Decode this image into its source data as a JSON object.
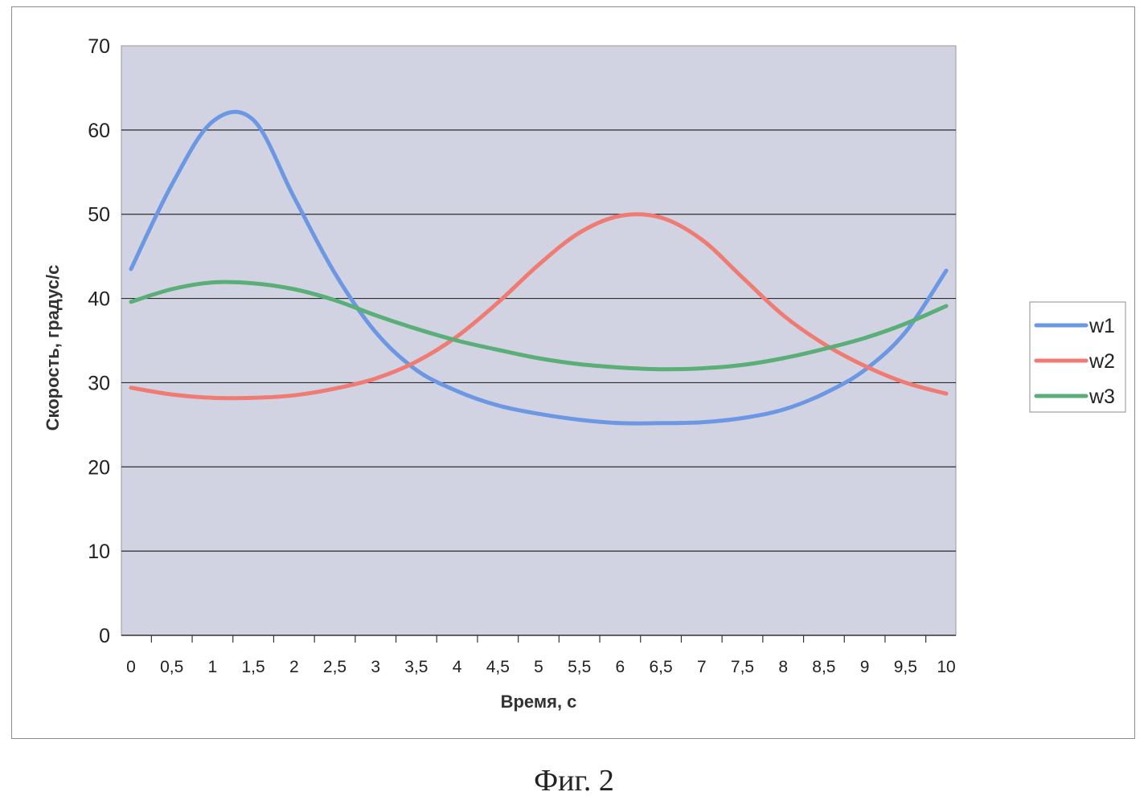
{
  "chart_data": {
    "type": "line",
    "title": "",
    "xlabel": "Время, с",
    "ylabel": "Скорость, градус/с",
    "ylim": [
      0,
      70
    ],
    "yticks": [
      "0",
      "10",
      "20",
      "30",
      "40",
      "50",
      "60",
      "70"
    ],
    "xticks": [
      "0",
      "0,5",
      "1",
      "1,5",
      "2",
      "2,5",
      "3",
      "3,5",
      "4",
      "4,5",
      "5",
      "5,5",
      "6",
      "6,5",
      "7",
      "7,5",
      "8",
      "8,5",
      "9",
      "9,5",
      "10"
    ],
    "grid": true,
    "legend_position": "right",
    "background_color": "#d2d3e2",
    "x": [
      0,
      0.5,
      1,
      1.5,
      2,
      2.5,
      3,
      3.5,
      4,
      4.5,
      5,
      5.5,
      6,
      6.5,
      7,
      7.5,
      8,
      8.5,
      9,
      9.5,
      10
    ],
    "series": [
      {
        "name": "w1",
        "color": "#6c97e2",
        "values": [
          43.5,
          53.5,
          61.0,
          61.2,
          52.0,
          43.0,
          36.0,
          31.5,
          29.0,
          27.3,
          26.3,
          25.6,
          25.2,
          25.2,
          25.3,
          25.8,
          26.8,
          28.7,
          31.5,
          36.0,
          43.3
        ]
      },
      {
        "name": "w2",
        "color": "#f07b72",
        "values": [
          29.4,
          28.6,
          28.2,
          28.2,
          28.5,
          29.3,
          30.5,
          32.5,
          35.5,
          39.5,
          44.0,
          47.8,
          49.8,
          49.6,
          47.0,
          42.5,
          38.0,
          34.6,
          32.0,
          30.0,
          28.7
        ]
      },
      {
        "name": "w3",
        "color": "#5aae78",
        "values": [
          39.6,
          41.1,
          41.9,
          41.8,
          41.1,
          39.8,
          38.0,
          36.4,
          35.0,
          33.9,
          32.9,
          32.2,
          31.8,
          31.6,
          31.7,
          32.1,
          32.9,
          34.0,
          35.3,
          37.0,
          39.1
        ]
      }
    ]
  },
  "caption": "Фиг. 2"
}
